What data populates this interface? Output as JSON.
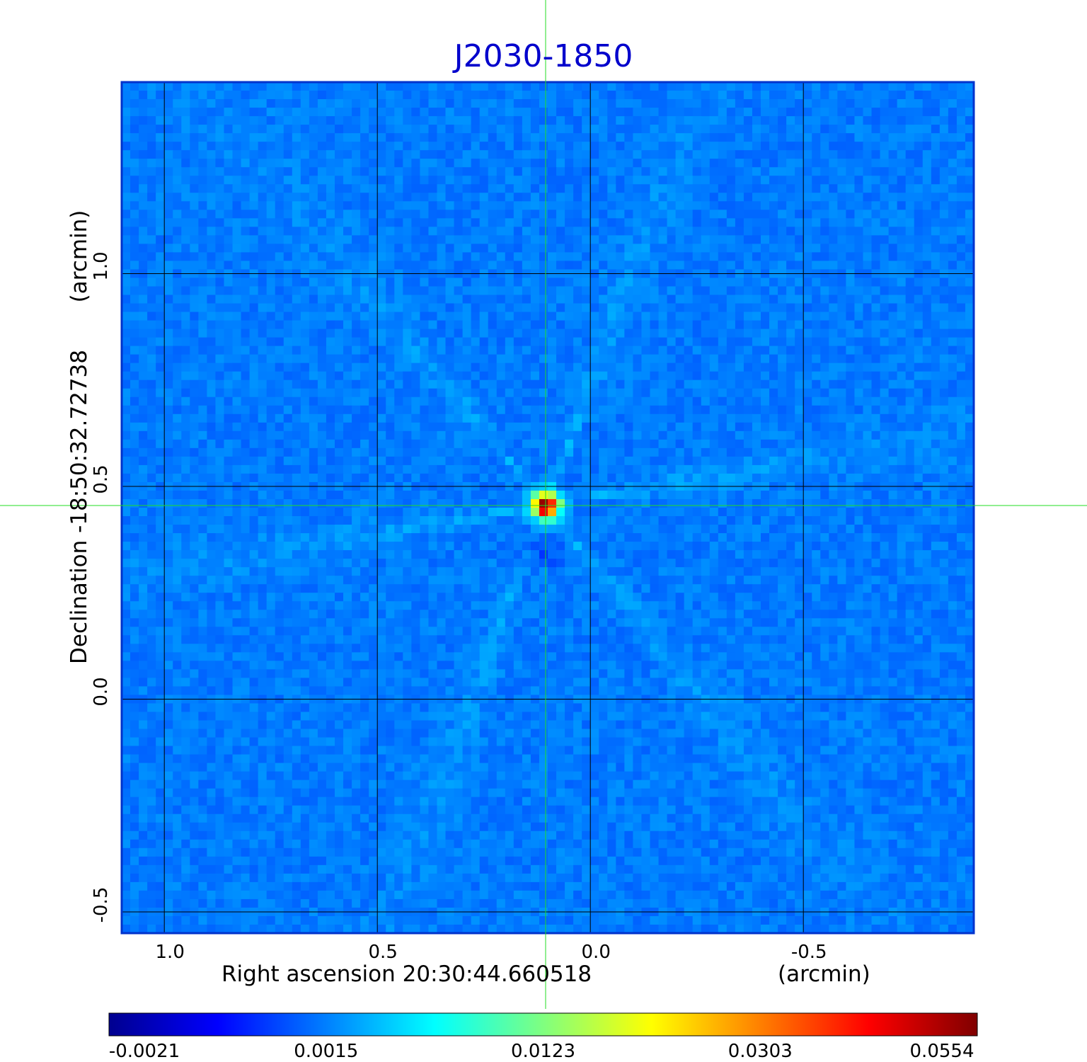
{
  "chart_data": {
    "type": "heatmap",
    "title": "J2030-1850",
    "xlabel": "Right ascension  20:30:44.660518",
    "xunit": "(arcmin)",
    "ylabel": "Declination  -18:50:32.72738",
    "yunit": "(arcmin)",
    "xlim": [
      1.1,
      -0.9
    ],
    "ylim": [
      -0.55,
      1.45
    ],
    "x_ticks": [
      1.0,
      0.5,
      0.0,
      -0.5
    ],
    "x_tick_labels": [
      "1.0",
      "0.5",
      "0.0",
      "-0.5"
    ],
    "y_ticks": [
      1.0,
      0.5,
      0.0,
      -0.5
    ],
    "y_tick_labels": [
      "1.0",
      "0.5",
      "0.0",
      "-0.5"
    ],
    "grid": true,
    "crosshair": {
      "x": 0.105,
      "y": 0.455,
      "color": "#22dd22"
    },
    "source_peak": {
      "x": 0.105,
      "y": 0.455,
      "value": 0.0554
    },
    "background_level": 0.0,
    "colorbar": {
      "colormap": "jet",
      "tick_labels": [
        "-0.0021",
        "0.0015",
        "0.0123",
        "0.0303",
        "0.0554"
      ],
      "tick_values": [
        -0.0021,
        0.0015,
        0.0123,
        0.0303,
        0.0554
      ]
    }
  }
}
